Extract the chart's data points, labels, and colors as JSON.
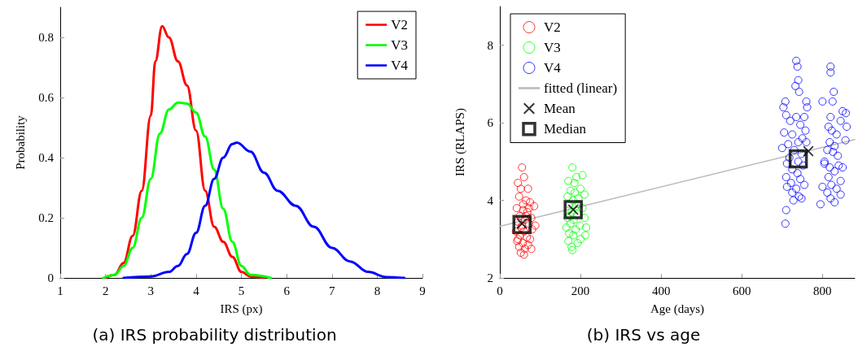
{
  "chart_data": [
    {
      "type": "line",
      "xlabel": "IRS (px)",
      "ylabel": "Probability",
      "xlim": [
        1,
        9
      ],
      "xticks": [
        1,
        2,
        3,
        4,
        5,
        6,
        7,
        8,
        9
      ],
      "ylim": [
        0,
        0.9
      ],
      "yticks": [
        0,
        0.2,
        0.4,
        0.6,
        0.8
      ],
      "legend": "top right",
      "marker": "none",
      "line_style": "solid",
      "annotations": [
        "(a) IRS probability distribution"
      ],
      "series": [
        {
          "name": "V2",
          "color": "#ff0000",
          "x": [
            2.0,
            2.2,
            2.4,
            2.6,
            2.8,
            3.0,
            3.1,
            3.25,
            3.4,
            3.6,
            3.8,
            4.0,
            4.2,
            4.4,
            4.6,
            4.8,
            5.0,
            5.2,
            5.5
          ],
          "values": [
            0,
            0.01,
            0.05,
            0.14,
            0.29,
            0.54,
            0.72,
            0.837,
            0.8,
            0.72,
            0.64,
            0.49,
            0.29,
            0.17,
            0.12,
            0.07,
            0.02,
            0.005,
            0
          ]
        },
        {
          "name": "V3",
          "color": "#00ff00",
          "x": [
            1.95,
            2.2,
            2.4,
            2.6,
            2.8,
            3.0,
            3.2,
            3.4,
            3.6,
            3.8,
            4.0,
            4.2,
            4.4,
            4.6,
            4.8,
            5.0,
            5.2,
            5.65
          ],
          "values": [
            0,
            0.01,
            0.04,
            0.1,
            0.2,
            0.33,
            0.48,
            0.56,
            0.583,
            0.58,
            0.55,
            0.47,
            0.36,
            0.23,
            0.12,
            0.04,
            0.01,
            0
          ]
        },
        {
          "name": "V4",
          "color": "#0000ff",
          "x": [
            2.4,
            3.0,
            3.4,
            3.6,
            3.8,
            4.0,
            4.2,
            4.4,
            4.6,
            4.8,
            4.9,
            5.2,
            5.5,
            5.8,
            6.2,
            6.6,
            7.0,
            7.4,
            7.8,
            8.2,
            8.6
          ],
          "values": [
            0,
            0.005,
            0.02,
            0.04,
            0.08,
            0.15,
            0.24,
            0.33,
            0.4,
            0.445,
            0.45,
            0.42,
            0.35,
            0.29,
            0.24,
            0.17,
            0.1,
            0.055,
            0.02,
            0.003,
            0
          ]
        }
      ]
    },
    {
      "type": "scatter",
      "xlabel": "Age (days)",
      "ylabel": "IRS (RLAPS)",
      "xlim": [
        0,
        880
      ],
      "xticks": [
        0,
        200,
        400,
        600,
        800
      ],
      "ylim": [
        2,
        9
      ],
      "yticks": [
        2,
        4,
        6,
        8
      ],
      "legend": "top left",
      "marker": "circle",
      "annotations": [
        "(b) IRS vs age"
      ],
      "series": [
        {
          "name": "V2",
          "color": "#ff0000",
          "x": [
            55,
            45,
            60,
            52,
            70,
            48,
            65,
            75,
            85,
            42,
            58,
            68,
            50,
            78,
            62,
            45,
            72,
            55,
            88,
            40,
            60,
            80,
            50,
            67,
            75,
            43,
            57,
            70,
            48,
            62,
            78,
            52,
            60,
            45,
            65,
            58,
            72,
            53
          ],
          "values": [
            4.85,
            4.45,
            4.6,
            4.3,
            4.3,
            4.1,
            4.0,
            3.95,
            3.85,
            3.8,
            3.75,
            3.7,
            3.6,
            3.55,
            3.5,
            3.45,
            3.4,
            3.35,
            3.35,
            3.2,
            3.2,
            3.25,
            3.1,
            3.05,
            3.0,
            2.95,
            2.9,
            2.85,
            2.8,
            2.75,
            2.75,
            2.65,
            2.6,
            3.0,
            3.6,
            3.9,
            3.8,
            3.3
          ]
        },
        {
          "name": "V3",
          "color": "#00ff00",
          "x": [
            180,
            190,
            205,
            170,
            185,
            200,
            175,
            210,
            168,
            182,
            195,
            172,
            188,
            205,
            178,
            192,
            168,
            210,
            183,
            175,
            198,
            165,
            188,
            214,
            172,
            182,
            200,
            170,
            193,
            178,
            180,
            174,
            196,
            186,
            212
          ],
          "values": [
            4.85,
            4.6,
            4.65,
            4.5,
            4.45,
            4.3,
            4.25,
            4.15,
            4.1,
            4.0,
            4.05,
            3.9,
            3.85,
            3.8,
            3.7,
            3.65,
            3.55,
            3.55,
            3.5,
            3.4,
            3.35,
            3.3,
            3.25,
            3.3,
            3.15,
            3.1,
            3.0,
            2.95,
            2.9,
            2.8,
            2.72,
            3.6,
            3.9,
            4.2,
            3.1
          ]
        },
        {
          "name": "V4",
          "color": "#0000ff",
          "x": [
            735,
            738,
            740,
            733,
            742,
            708,
            760,
            703,
            762,
            710,
            735,
            755,
            720,
            745,
            758,
            705,
            725,
            750,
            740,
            715,
            760,
            700,
            730,
            748,
            718,
            740,
            712,
            752,
            725,
            738,
            710,
            745,
            722,
            755,
            712,
            735,
            725,
            742,
            728,
            748,
            710,
            708,
            820,
            820,
            828,
            800,
            825,
            850,
            858,
            820,
            845,
            815,
            860,
            823,
            835,
            857,
            818,
            830,
            812,
            826,
            805,
            840,
            818,
            850,
            830,
            815,
            845,
            822,
            800,
            835,
            812,
            845,
            820,
            830,
            795,
            805,
            838
          ],
          "values": [
            7.6,
            7.45,
            7.1,
            6.95,
            6.8,
            6.55,
            6.55,
            6.4,
            6.4,
            6.2,
            6.15,
            6.15,
            6.05,
            5.95,
            5.8,
            5.75,
            5.7,
            5.6,
            5.5,
            5.45,
            5.5,
            5.35,
            5.3,
            5.2,
            5.1,
            5.0,
            4.95,
            4.9,
            4.8,
            4.7,
            4.6,
            4.55,
            4.45,
            4.4,
            4.35,
            4.3,
            4.2,
            4.1,
            4.0,
            4.05,
            3.75,
            3.4,
            7.45,
            7.3,
            6.8,
            6.55,
            6.55,
            6.3,
            6.25,
            6.15,
            6.05,
            5.9,
            5.9,
            5.8,
            5.7,
            5.55,
            5.5,
            5.4,
            5.3,
            5.25,
            5.0,
            4.9,
            4.85,
            4.85,
            4.75,
            4.6,
            4.5,
            4.4,
            4.35,
            4.3,
            4.2,
            4.15,
            4.05,
            3.95,
            3.9,
            4.95,
            5.15
          ]
        },
        {
          "name": "fitted (linear)",
          "type": "line",
          "color": "#bbbbbb",
          "marker": "none",
          "x": [
            0,
            880
          ],
          "values": [
            3.33,
            5.57
          ]
        },
        {
          "name": "Mean",
          "color": "#000000",
          "marker": "cross",
          "x": [
            55,
            182,
            765
          ],
          "values": [
            3.4,
            3.76,
            5.27
          ]
        },
        {
          "name": "Median",
          "color": "#000000",
          "marker": "square",
          "x": [
            55,
            182,
            740
          ],
          "values": [
            3.38,
            3.76,
            5.07
          ]
        }
      ]
    }
  ]
}
